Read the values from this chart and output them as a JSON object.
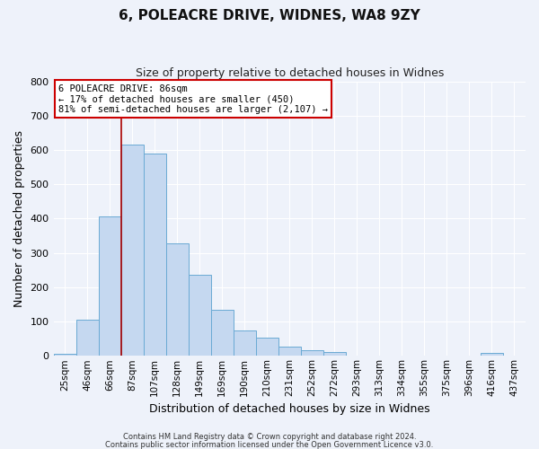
{
  "title": "6, POLEACRE DRIVE, WIDNES, WA8 9ZY",
  "subtitle": "Size of property relative to detached houses in Widnes",
  "xlabel": "Distribution of detached houses by size in Widnes",
  "ylabel": "Number of detached properties",
  "bar_labels": [
    "25sqm",
    "46sqm",
    "66sqm",
    "87sqm",
    "107sqm",
    "128sqm",
    "149sqm",
    "169sqm",
    "190sqm",
    "210sqm",
    "231sqm",
    "252sqm",
    "272sqm",
    "293sqm",
    "313sqm",
    "334sqm",
    "355sqm",
    "375sqm",
    "396sqm",
    "416sqm",
    "437sqm"
  ],
  "bar_values": [
    7,
    105,
    405,
    615,
    590,
    328,
    235,
    135,
    75,
    52,
    27,
    17,
    12,
    0,
    0,
    0,
    0,
    0,
    0,
    8,
    0
  ],
  "bar_color": "#c5d8f0",
  "bar_edge_color": "#6aaad4",
  "background_color": "#eef2fa",
  "grid_color": "#ffffff",
  "vline_color": "#aa0000",
  "annotation_title": "6 POLEACRE DRIVE: 86sqm",
  "annotation_line1": "← 17% of detached houses are smaller (450)",
  "annotation_line2": "81% of semi-detached houses are larger (2,107) →",
  "annotation_box_color": "#ffffff",
  "annotation_border_color": "#cc0000",
  "ylim": [
    0,
    800
  ],
  "yticks": [
    0,
    100,
    200,
    300,
    400,
    500,
    600,
    700,
    800
  ],
  "footer1": "Contains HM Land Registry data © Crown copyright and database right 2024.",
  "footer2": "Contains public sector information licensed under the Open Government Licence v3.0."
}
